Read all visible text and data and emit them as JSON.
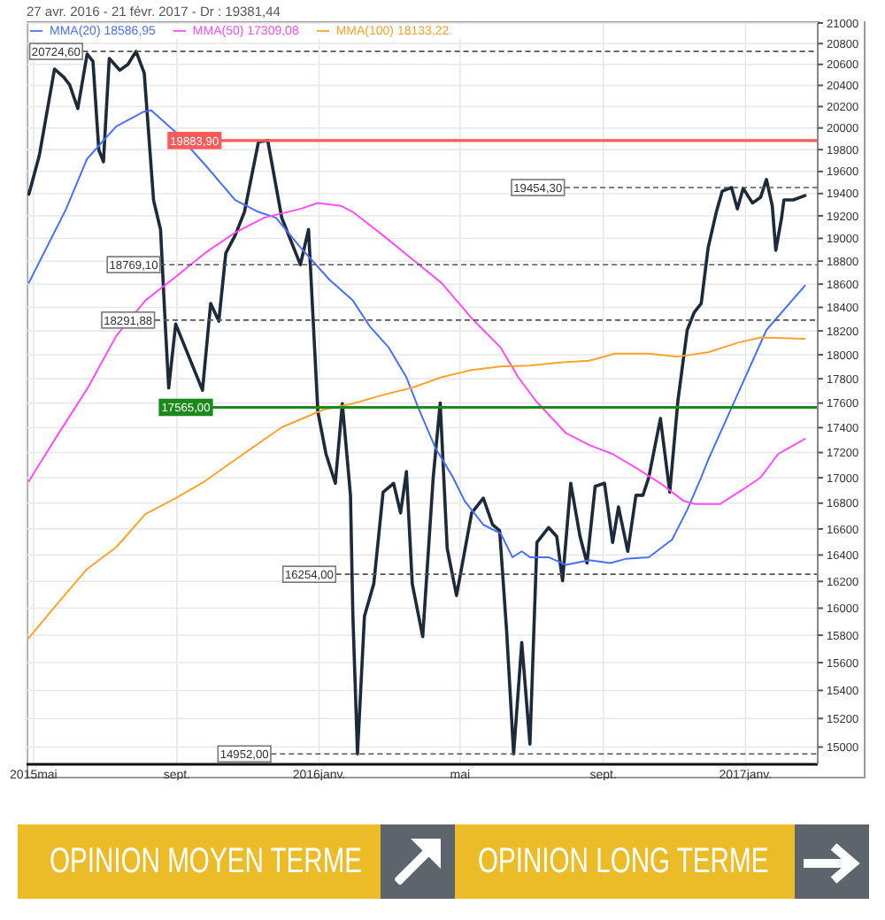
{
  "chart_data": {
    "type": "line",
    "title": "27 avr. 2016 - 21 févr. 2017 - Dr : 19381,44",
    "series": [
      {
        "color": "#1c2a3a",
        "x": [
          "2015-04-27",
          "2015-05-06",
          "2015-05-19",
          "2015-05-27",
          "2015-06-01",
          "2015-06-08",
          "2015-06-16",
          "2015-06-21",
          "2015-06-26",
          "2015-06-30",
          "2015-07-05",
          "2015-07-14",
          "2015-07-21",
          "2015-07-28",
          "2015-08-04",
          "2015-08-12",
          "2015-08-18",
          "2015-08-22",
          "2015-08-25",
          "2015-08-31",
          "2015-09-23",
          "2015-09-30",
          "2015-10-07",
          "2015-10-13",
          "2015-10-21",
          "2015-10-29",
          "2015-11-10",
          "2015-11-18",
          "2015-11-30",
          "2015-12-16",
          "2015-12-23",
          "2015-12-31",
          "2016-01-07",
          "2016-01-15",
          "2016-01-21",
          "2016-01-28",
          "2016-01-30",
          "2016-02-03",
          "2016-02-09",
          "2016-02-17",
          "2016-02-25",
          "2016-03-05",
          "2016-03-11",
          "2016-03-16",
          "2016-03-21",
          "2016-03-30",
          "2016-04-08",
          "2016-04-14",
          "2016-04-20",
          "2016-04-28",
          "2016-05-11",
          "2016-05-21",
          "2016-05-29",
          "2016-06-04",
          "2016-06-10",
          "2016-06-16",
          "2016-06-23",
          "2016-06-30",
          "2016-07-06",
          "2016-07-16",
          "2016-07-23",
          "2016-07-28",
          "2016-08-04",
          "2016-08-12",
          "2016-08-18",
          "2016-08-25",
          "2016-09-02",
          "2016-09-09",
          "2016-09-14",
          "2016-09-22",
          "2016-09-29",
          "2016-10-05",
          "2016-10-10",
          "2016-10-20",
          "2016-10-28",
          "2016-11-04",
          "2016-11-12",
          "2016-11-18",
          "2016-11-24",
          "2016-11-30",
          "2016-12-07",
          "2016-12-12",
          "2016-12-20",
          "2016-12-25",
          "2016-12-30",
          "2017-01-07",
          "2017-01-14",
          "2017-01-19",
          "2017-01-24",
          "2017-01-27",
          "2017-02-01",
          "2017-02-03",
          "2017-02-11",
          "2017-02-21"
        ],
        "values": [
          19394,
          19748,
          20556,
          20477,
          20405,
          20181,
          20700,
          20629,
          19797,
          19688,
          20658,
          20544,
          20600,
          20725,
          20516,
          19340,
          19077,
          18263,
          17724,
          18258,
          17705,
          18434,
          18283,
          18870,
          19026,
          19235,
          19870,
          19884,
          19183,
          18769,
          19077,
          17530,
          17188,
          16956,
          17596,
          16862,
          15962,
          14952,
          15941,
          16183,
          16886,
          16956,
          16724,
          17048,
          16183,
          15789,
          17002,
          17600,
          16451,
          16094,
          16724,
          16839,
          16632,
          16587,
          15832,
          14952,
          15746,
          15020,
          16496,
          16611,
          16542,
          16205,
          16956,
          16542,
          16339,
          16932,
          16956,
          16496,
          16770,
          16428,
          16862,
          16862,
          17002,
          17474,
          16886,
          17619,
          18208,
          18358,
          18434,
          18921,
          19235,
          19421,
          19454,
          19262,
          19447,
          19315,
          19367,
          19527,
          19288,
          18895,
          19183,
          19342,
          19342,
          19381
        ]
      },
      {
        "name": "MMA(20) 18586,95",
        "color": "#4a6fff",
        "x": [
          "2015-04-27",
          "2015-05-29",
          "2015-06-16",
          "2015-07-11",
          "2015-08-03",
          "2015-08-10",
          "2015-08-31",
          "2015-09-25",
          "2015-10-21",
          "2015-11-10",
          "2015-11-25",
          "2015-12-16",
          "2016-01-10",
          "2016-01-30",
          "2016-02-14",
          "2016-03-01",
          "2016-03-16",
          "2016-03-26",
          "2016-04-10",
          "2016-04-25",
          "2016-05-05",
          "2016-05-21",
          "2016-06-05",
          "2016-06-15",
          "2016-06-23",
          "2016-06-30",
          "2016-07-16",
          "2016-07-31",
          "2016-08-20",
          "2016-09-07",
          "2016-09-20",
          "2016-10-10",
          "2016-10-30",
          "2016-11-12",
          "2016-11-24",
          "2016-11-30",
          "2016-12-25",
          "2017-01-19",
          "2017-02-21"
        ],
        "values": [
          18612,
          19262,
          19716,
          20015,
          20150,
          20164,
          19961,
          19663,
          19342,
          19235,
          19183,
          18921,
          18638,
          18460,
          18233,
          18058,
          17812,
          17565,
          17235,
          17002,
          16817,
          16632,
          16564,
          16383,
          16428,
          16383,
          16383,
          16325,
          16360,
          16339,
          16370,
          16383,
          16518,
          16748,
          17002,
          17142,
          17667,
          18208,
          18587
        ]
      },
      {
        "name": "MMA(50) 17309,08",
        "color": "#ff4dff",
        "x": [
          "2015-04-27",
          "2015-05-21",
          "2015-06-16",
          "2015-07-11",
          "2015-08-05",
          "2015-08-31",
          "2015-09-25",
          "2015-10-21",
          "2015-11-15",
          "2015-12-16",
          "2015-12-31",
          "2016-01-20",
          "2016-01-30",
          "2016-02-25",
          "2016-03-21",
          "2016-04-15",
          "2016-05-11",
          "2016-06-05",
          "2016-06-20",
          "2016-07-05",
          "2016-07-31",
          "2016-08-20",
          "2016-09-09",
          "2016-09-30",
          "2016-10-20",
          "2016-11-09",
          "2016-11-19",
          "2016-12-10",
          "2016-12-30",
          "2017-01-14",
          "2017-01-29",
          "2017-02-21"
        ],
        "values": [
          16972,
          17331,
          17716,
          18158,
          18460,
          18663,
          18870,
          19051,
          19183,
          19262,
          19315,
          19288,
          19235,
          19026,
          18817,
          18612,
          18308,
          18058,
          17812,
          17619,
          17355,
          17260,
          17188,
          17072,
          16956,
          16817,
          16793,
          16793,
          16908,
          17002,
          17188,
          17309
        ]
      },
      {
        "name": "MMA(100) 18133,22",
        "color": "#ffa22e",
        "x": [
          "2015-04-27",
          "2015-05-21",
          "2015-06-16",
          "2015-07-11",
          "2015-08-05",
          "2015-08-31",
          "2015-09-25",
          "2015-10-21",
          "2015-11-30",
          "2016-01-05",
          "2016-01-30",
          "2016-02-25",
          "2016-03-21",
          "2016-04-15",
          "2016-05-11",
          "2016-06-05",
          "2016-06-30",
          "2016-07-26",
          "2016-08-20",
          "2016-09-11",
          "2016-10-10",
          "2016-11-04",
          "2016-11-30",
          "2016-12-25",
          "2017-01-14",
          "2017-02-21"
        ],
        "values": [
          15780,
          16028,
          16294,
          16460,
          16715,
          16839,
          16972,
          17142,
          17403,
          17547,
          17596,
          17667,
          17726,
          17812,
          17872,
          17902,
          17910,
          17935,
          17950,
          18009,
          18009,
          17984,
          18020,
          18099,
          18144,
          18133
        ]
      }
    ],
    "xlim": [
      "2015-04-25",
      "2017-03-04"
    ],
    "xticks": [
      {
        "value": "2015-05-01",
        "label": "2015mai"
      },
      {
        "value": "2015-09-01",
        "label": "sept."
      },
      {
        "value": "2016-01-01",
        "label": "2016janv."
      },
      {
        "value": "2016-05-01",
        "label": "mai"
      },
      {
        "value": "2016-09-01",
        "label": "sept."
      },
      {
        "value": "2017-01-01",
        "label": "2017janv."
      }
    ],
    "ylim": [
      14880,
      21000
    ],
    "yticks": [
      15000,
      15200,
      15400,
      15600,
      15800,
      16000,
      16200,
      16400,
      16600,
      16800,
      17000,
      17200,
      17400,
      17600,
      17800,
      18000,
      18200,
      18400,
      18600,
      18800,
      19000,
      19200,
      19400,
      19600,
      19800,
      20000,
      20200,
      20400,
      20600,
      20800,
      21000
    ],
    "log": true,
    "grid": true,
    "legend": "top left",
    "marker": "none",
    "ref_lines": [
      {
        "axis": "y",
        "value": 20724.6,
        "label": "20724,60",
        "color": "#555555",
        "line_style": "dashed"
      },
      {
        "axis": "y",
        "value": 19883.9,
        "label": "19883,90",
        "color": "#ff5a5a",
        "line_style": "solid"
      },
      {
        "axis": "y",
        "value": 19454.3,
        "label": "19454,30",
        "color": "#555555",
        "line_style": "dashed"
      },
      {
        "axis": "y",
        "value": 18769.1,
        "label": "18769,10",
        "color": "#555555",
        "line_style": "dashed"
      },
      {
        "axis": "y",
        "value": 18291.88,
        "label": "18291,88",
        "color": "#555555",
        "line_style": "dashed"
      },
      {
        "axis": "y",
        "value": 17565,
        "label": "17565,00",
        "color": "#1a8a1a",
        "line_style": "solid"
      },
      {
        "axis": "y",
        "value": 16254,
        "label": "16254,00",
        "color": "#555555",
        "line_style": "dashed"
      },
      {
        "axis": "y",
        "value": 14952,
        "label": "14952,00",
        "color": "#555555",
        "line_style": "dashed"
      }
    ],
    "annotations": [
      "OPINION MOYEN TERME",
      "OPINION LONG TERME"
    ]
  }
}
